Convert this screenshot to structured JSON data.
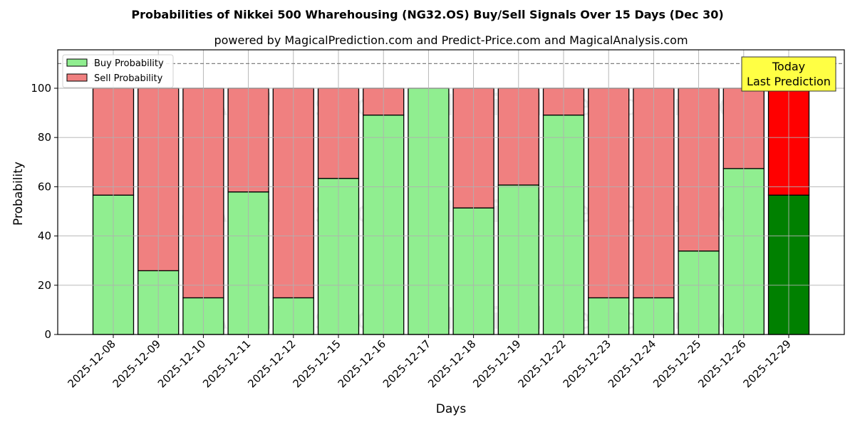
{
  "chart_data": {
    "type": "bar",
    "stacked": true,
    "title": "Probabilities of Nikkei 500 Wharehousing (NG32.OS) Buy/Sell Signals Over 15 Days (Dec 30)",
    "subtitle": "powered by MagicalPrediction.com and Predict-Price.com and MagicalAnalysis.com",
    "xlabel": "Days",
    "ylabel": "Probability",
    "ylim": [
      0,
      115
    ],
    "yticks": [
      0,
      20,
      40,
      60,
      80,
      100
    ],
    "grid": true,
    "reference_line": {
      "y": 110,
      "style": "dashed",
      "color": "#808080"
    },
    "categories": [
      "2025-12-08",
      "2025-12-09",
      "2025-12-10",
      "2025-12-11",
      "2025-12-12",
      "2025-12-15",
      "2025-12-16",
      "2025-12-17",
      "2025-12-18",
      "2025-12-19",
      "2025-12-22",
      "2025-12-23",
      "2025-12-24",
      "2025-12-25",
      "2025-12-26",
      "2025-12-29"
    ],
    "series": [
      {
        "name": "Buy Probability",
        "color": "#90ee90",
        "values": [
          56.6,
          25.9,
          14.9,
          57.9,
          14.9,
          63.4,
          89.1,
          100.0,
          51.4,
          60.7,
          89.1,
          14.9,
          14.9,
          33.9,
          67.4,
          56.6
        ]
      },
      {
        "name": "Sell Probability",
        "color": "#f08080",
        "values": [
          43.4,
          74.1,
          85.1,
          42.1,
          85.1,
          36.6,
          10.9,
          0.0,
          48.6,
          39.3,
          10.9,
          85.1,
          85.1,
          66.1,
          32.6,
          43.4
        ]
      }
    ],
    "highlight": {
      "index": 15,
      "buy_color": "#008000",
      "sell_color": "#ff0000"
    },
    "legend": {
      "position": "upper left",
      "entries": [
        "Buy Probability",
        "Sell Probability"
      ]
    },
    "annotation": {
      "lines": [
        "Today",
        "Last Prediction"
      ],
      "background": "#ffff44",
      "target_index": 15
    },
    "watermarks": [
      "MagicalAnalysis.com",
      "MagicalPrediction.com"
    ]
  }
}
